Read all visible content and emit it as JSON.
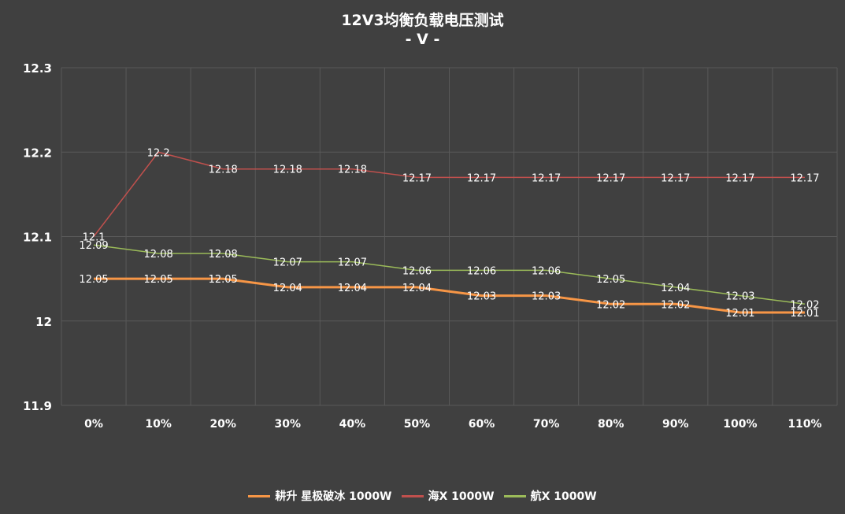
{
  "chart_data": {
    "type": "line",
    "title": "12V3均衡负载电压测试",
    "subtitle": "- V -",
    "categories": [
      "0%",
      "10%",
      "20%",
      "30%",
      "40%",
      "50%",
      "60%",
      "70%",
      "80%",
      "90%",
      "100%",
      "110%"
    ],
    "ylim": [
      11.9,
      12.3
    ],
    "yticks": [
      "11.9",
      "12",
      "12.1",
      "12.2",
      "12.3"
    ],
    "grid": true,
    "legend": "bottom",
    "series": [
      {
        "name": "耕升 星极破冰 1000W",
        "color": "#f79646",
        "values": [
          12.05,
          12.05,
          12.05,
          12.04,
          12.04,
          12.04,
          12.03,
          12.03,
          12.02,
          12.02,
          12.01,
          12.01
        ]
      },
      {
        "name": "海X 1000W",
        "color": "#c0504d",
        "values": [
          12.1,
          12.2,
          12.18,
          12.18,
          12.18,
          12.17,
          12.17,
          12.17,
          12.17,
          12.17,
          12.17,
          12.17
        ]
      },
      {
        "name": "航X 1000W",
        "color": "#9bbb59",
        "values": [
          12.09,
          12.08,
          12.08,
          12.07,
          12.07,
          12.06,
          12.06,
          12.06,
          12.05,
          12.04,
          12.03,
          12.02
        ]
      }
    ]
  }
}
